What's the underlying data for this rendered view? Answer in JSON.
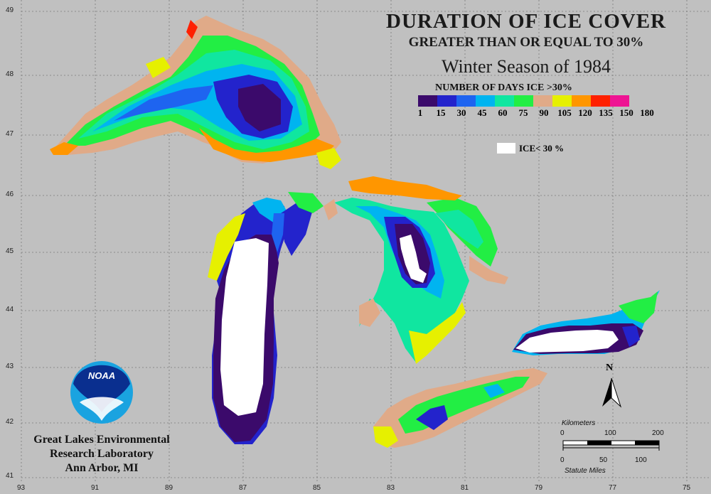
{
  "title": {
    "line1": "DURATION OF ICE COVER",
    "line2": "GREATER THAN OR EQUAL TO 30%",
    "line3": "Winter Season of 1984"
  },
  "legend": {
    "title": "NUMBER OF DAYS ICE >30%",
    "ticks": [
      "1",
      "15",
      "30",
      "45",
      "60",
      "75",
      "90",
      "105",
      "120",
      "135",
      "150",
      "180"
    ],
    "colors": [
      "#3b0a6b",
      "#2323cc",
      "#1e64f0",
      "#00b4f0",
      "#10e6a0",
      "#22ee44",
      "#e0aa88",
      "#e6f000",
      "#ff9600",
      "#ff2000",
      "#ee1493"
    ],
    "ice_label": "ICE< 30 %",
    "ice_color": "#ffffff"
  },
  "axes": {
    "latitudes": [
      "49",
      "48",
      "47",
      "46",
      "45",
      "44",
      "43",
      "42",
      "41"
    ],
    "longitudes": [
      "93",
      "91",
      "89",
      "87",
      "85",
      "83",
      "81",
      "79",
      "77",
      "75"
    ]
  },
  "credit": {
    "line1": "Great Lakes Environmental",
    "line2": "Research Laboratory",
    "line3": "Ann Arbor, MI"
  },
  "logo_text": "NOAA",
  "north_label": "N",
  "scale": {
    "km_label": "Kilometers",
    "km_ticks": [
      "0",
      "100",
      "200"
    ],
    "mi_ticks": [
      "0",
      "50",
      "100"
    ],
    "mi_label": "Statute Miles"
  }
}
